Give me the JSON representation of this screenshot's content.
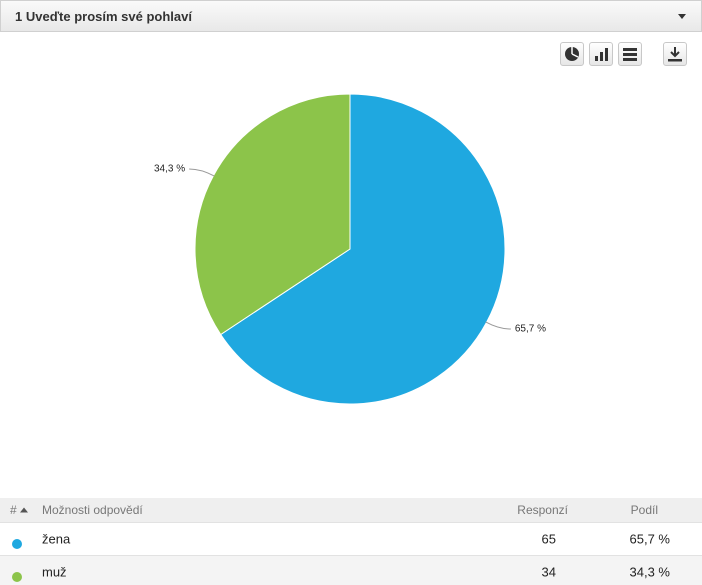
{
  "header": {
    "title": "1 Uveďte prosím své pohlaví"
  },
  "chart_data": {
    "type": "pie",
    "categories": [
      "žena",
      "muž"
    ],
    "values": [
      65.7,
      34.3
    ],
    "value_labels": [
      "65,7 %",
      "34,3 %"
    ],
    "colors": [
      "#1fa8e0",
      "#8cc44a"
    ]
  },
  "table": {
    "columns": [
      "#",
      "Možnosti odpovědí",
      "Responzí",
      "Podíl"
    ],
    "rows": [
      {
        "label": "žena",
        "responses": 65,
        "share": "65,7 %"
      },
      {
        "label": "muž",
        "responses": 34,
        "share": "34,3 %"
      }
    ]
  }
}
